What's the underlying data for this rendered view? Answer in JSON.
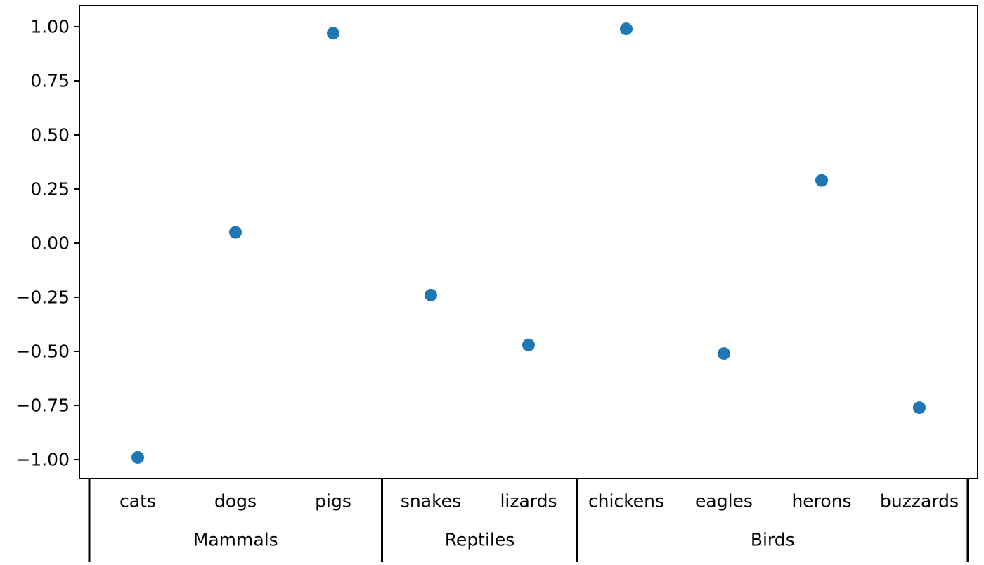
{
  "chart_data": {
    "type": "scatter",
    "title": "",
    "xlabel": "",
    "ylabel": "",
    "categories": [
      "cats",
      "dogs",
      "pigs",
      "snakes",
      "lizards",
      "chickens",
      "eagles",
      "herons",
      "buzzards"
    ],
    "values": [
      -0.99,
      0.05,
      0.97,
      -0.24,
      -0.47,
      0.99,
      -0.51,
      0.29,
      -0.76
    ],
    "groups": [
      {
        "name": "Mammals",
        "members": [
          "cats",
          "dogs",
          "pigs"
        ]
      },
      {
        "name": "Reptiles",
        "members": [
          "snakes",
          "lizards"
        ]
      },
      {
        "name": "Birds",
        "members": [
          "chickens",
          "eagles",
          "herons",
          "buzzards"
        ]
      }
    ],
    "yticks": [
      1.0,
      0.75,
      0.5,
      0.25,
      0.0,
      -0.25,
      -0.5,
      -0.75,
      -1.0
    ],
    "ytick_labels": [
      "1.00",
      "0.75",
      "0.50",
      "0.25",
      "0.00",
      "−0.25",
      "−0.50",
      "−0.75",
      "−1.00"
    ],
    "ylim": [
      -1.08,
      1.09
    ],
    "grid": false,
    "marker_color": "#1f77b4"
  }
}
